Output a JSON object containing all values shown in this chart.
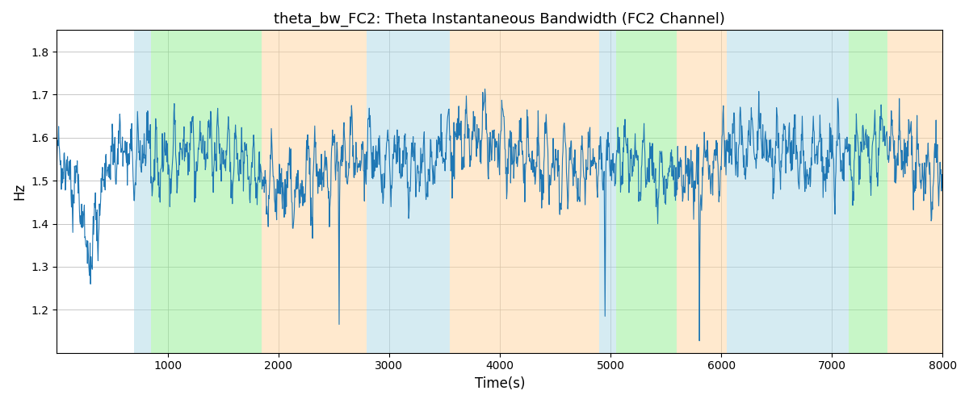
{
  "title": "theta_bw_FC2: Theta Instantaneous Bandwidth (FC2 Channel)",
  "xlabel": "Time(s)",
  "ylabel": "Hz",
  "xlim": [
    0,
    8000
  ],
  "ylim": [
    1.1,
    1.85
  ],
  "yticks": [
    1.2,
    1.3,
    1.4,
    1.5,
    1.6,
    1.7,
    1.8
  ],
  "xticks": [
    1000,
    2000,
    3000,
    4000,
    5000,
    6000,
    7000,
    8000
  ],
  "line_color": "#1f77b4",
  "line_width": 0.8,
  "background_color": "#ffffff",
  "grid_color": "#b0b0b0",
  "colored_bands": [
    {
      "xmin": 700,
      "xmax": 850,
      "color": "#add8e6",
      "alpha": 0.5
    },
    {
      "xmin": 850,
      "xmax": 1850,
      "color": "#90ee90",
      "alpha": 0.5
    },
    {
      "xmin": 1850,
      "xmax": 2800,
      "color": "#ffd59e",
      "alpha": 0.5
    },
    {
      "xmin": 2800,
      "xmax": 3550,
      "color": "#add8e6",
      "alpha": 0.5
    },
    {
      "xmin": 3550,
      "xmax": 4900,
      "color": "#ffd59e",
      "alpha": 0.5
    },
    {
      "xmin": 4900,
      "xmax": 5050,
      "color": "#add8e6",
      "alpha": 0.5
    },
    {
      "xmin": 5050,
      "xmax": 5600,
      "color": "#90ee90",
      "alpha": 0.5
    },
    {
      "xmin": 5600,
      "xmax": 6050,
      "color": "#ffd59e",
      "alpha": 0.5
    },
    {
      "xmin": 6050,
      "xmax": 7150,
      "color": "#add8e6",
      "alpha": 0.5
    },
    {
      "xmin": 7150,
      "xmax": 7500,
      "color": "#90ee90",
      "alpha": 0.5
    },
    {
      "xmin": 7500,
      "xmax": 8000,
      "color": "#ffd59e",
      "alpha": 0.5
    }
  ],
  "n_points": 2000,
  "seed": 7
}
